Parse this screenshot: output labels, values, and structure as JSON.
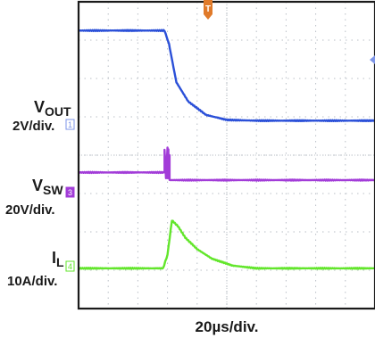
{
  "chart_data": {
    "type": "line",
    "xlabel": "20µs/div.",
    "grid": true,
    "x_divisions": 10,
    "y_divisions": 8,
    "trigger_marker": "T",
    "series": [
      {
        "name_main": "V",
        "name_sub": "OUT",
        "scale": "2V/div.",
        "channel": "1",
        "color": "#2b50d8",
        "x_div": [
          0,
          2.9,
          3.05,
          3.3,
          3.7,
          4.3,
          5.0,
          6.0,
          7.5,
          10
        ],
        "y_div": [
          7.25,
          7.25,
          6.9,
          5.9,
          5.4,
          5.05,
          4.92,
          4.9,
          4.9,
          4.9
        ]
      },
      {
        "name_main": "V",
        "name_sub": "SW",
        "scale": "20V/div.",
        "channel": "3",
        "color": "#a23cd8",
        "x_div": [
          0,
          2.9,
          2.9,
          2.95,
          3.0,
          3.0,
          3.03,
          3.03,
          3.07,
          3.07,
          10
        ],
        "y_div": [
          3.55,
          3.55,
          4.15,
          3.4,
          4.2,
          3.4,
          4.15,
          3.4,
          4.0,
          3.35,
          3.35
        ]
      },
      {
        "name_main": "I",
        "name_sub": "L",
        "scale": "10A/div.",
        "channel": "4",
        "color": "#62e62b",
        "x_div": [
          0,
          2.85,
          3.0,
          3.15,
          3.35,
          3.6,
          4.0,
          4.5,
          5.2,
          6.0,
          10
        ],
        "y_div": [
          1.05,
          1.05,
          1.4,
          2.3,
          2.15,
          1.85,
          1.55,
          1.3,
          1.12,
          1.05,
          1.05
        ]
      }
    ]
  },
  "colors": {
    "frame": "#1a1a1a",
    "grid": "#b9bfc6",
    "trigger": "#e07a2a",
    "channel_box": "#7d95e8"
  }
}
